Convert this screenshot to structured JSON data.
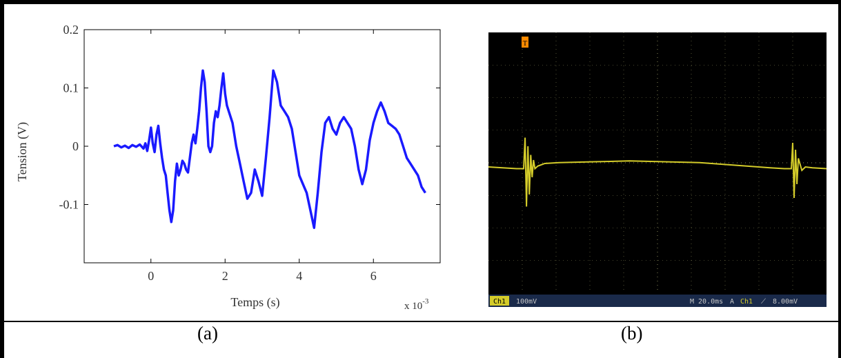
{
  "panel_a": {
    "caption": "(a)",
    "chart_data": {
      "type": "line",
      "title": "",
      "xlabel": "Temps (s)",
      "ylabel": "Tension (V)",
      "x_multiplier": "x 10",
      "x_multiplier_exp": "-3",
      "xlim": [
        -1.8,
        7.8
      ],
      "ylim": [
        -0.2,
        0.2
      ],
      "xticks": [
        0,
        2,
        4,
        6
      ],
      "xtick_labels": [
        "0",
        "2",
        "4",
        "6"
      ],
      "yticks": [
        -0.1,
        0,
        0.1,
        0.2
      ],
      "ytick_labels": [
        "-0.1",
        "0",
        "0.1",
        "0.2"
      ],
      "grid": false,
      "series": [
        {
          "color": "#1a1aff",
          "x": [
            -1.0,
            -0.9,
            -0.8,
            -0.7,
            -0.6,
            -0.5,
            -0.4,
            -0.3,
            -0.2,
            -0.15,
            -0.1,
            -0.05,
            0.0,
            0.05,
            0.1,
            0.15,
            0.2,
            0.25,
            0.3,
            0.35,
            0.4,
            0.45,
            0.5,
            0.55,
            0.6,
            0.65,
            0.7,
            0.75,
            0.8,
            0.85,
            0.9,
            0.95,
            1.0,
            1.05,
            1.1,
            1.15,
            1.2,
            1.25,
            1.3,
            1.35,
            1.4,
            1.45,
            1.5,
            1.55,
            1.6,
            1.65,
            1.7,
            1.75,
            1.8,
            1.85,
            1.9,
            1.95,
            2.0,
            2.05,
            2.1,
            2.2,
            2.3,
            2.4,
            2.5,
            2.6,
            2.7,
            2.8,
            2.9,
            3.0,
            3.1,
            3.2,
            3.3,
            3.4,
            3.5,
            3.6,
            3.7,
            3.8,
            3.9,
            4.0,
            4.1,
            4.2,
            4.3,
            4.4,
            4.5,
            4.6,
            4.7,
            4.8,
            4.9,
            5.0,
            5.1,
            5.2,
            5.3,
            5.4,
            5.5,
            5.6,
            5.7,
            5.8,
            5.9,
            6.0,
            6.1,
            6.2,
            6.3,
            6.4,
            6.5,
            6.6,
            6.7,
            6.8,
            6.9,
            7.0,
            7.1,
            7.2,
            7.3,
            7.4
          ],
          "y": [
            0.0,
            0.002,
            -0.002,
            0.001,
            -0.003,
            0.002,
            -0.001,
            0.003,
            -0.004,
            0.005,
            -0.008,
            0.01,
            0.032,
            0.005,
            -0.01,
            0.02,
            0.035,
            0.005,
            -0.02,
            -0.04,
            -0.05,
            -0.08,
            -0.11,
            -0.13,
            -0.11,
            -0.06,
            -0.03,
            -0.05,
            -0.04,
            -0.025,
            -0.03,
            -0.04,
            -0.045,
            -0.02,
            0.005,
            0.02,
            0.005,
            0.03,
            0.06,
            0.1,
            0.13,
            0.11,
            0.06,
            0.0,
            -0.01,
            0.0,
            0.04,
            0.06,
            0.05,
            0.07,
            0.1,
            0.125,
            0.09,
            0.07,
            0.06,
            0.04,
            0.0,
            -0.03,
            -0.06,
            -0.09,
            -0.08,
            -0.04,
            -0.06,
            -0.085,
            -0.02,
            0.05,
            0.13,
            0.11,
            0.07,
            0.06,
            0.05,
            0.03,
            -0.01,
            -0.05,
            -0.065,
            -0.08,
            -0.11,
            -0.14,
            -0.08,
            -0.01,
            0.04,
            0.05,
            0.03,
            0.02,
            0.04,
            0.05,
            0.04,
            0.03,
            0.0,
            -0.04,
            -0.065,
            -0.04,
            0.01,
            0.04,
            0.06,
            0.075,
            0.06,
            0.04,
            0.035,
            0.03,
            0.02,
            0.0,
            -0.02,
            -0.03,
            -0.04,
            -0.05,
            -0.07,
            -0.08
          ]
        }
      ]
    }
  },
  "panel_b": {
    "caption": "(b)",
    "chart_data": {
      "type": "line",
      "title": "",
      "trigger_marker": "T",
      "status": {
        "channel": "Ch1",
        "scale": "100mV",
        "timebase": "M 20.0ms",
        "trigger_label": "A",
        "trigger_channel": "Ch1",
        "trigger_level": "8.00mV"
      },
      "colors": {
        "trace": "#d4cc2a",
        "grid": "#8a8a5a",
        "marker": "#ff8a00",
        "background": "#000000"
      },
      "series": [
        {
          "name": "Ch1",
          "x": [
            0,
            20,
            40,
            50,
            52,
            54,
            56,
            58,
            60,
            62,
            64,
            66,
            70,
            80,
            100,
            150,
            200,
            250,
            300,
            350,
            400,
            420,
            425,
            430,
            432,
            434,
            436,
            438,
            440,
            445,
            450,
            460,
            480
          ],
          "y": [
            -0.02,
            -0.025,
            -0.03,
            -0.03,
            0.15,
            -0.25,
            0.1,
            -0.18,
            0.05,
            -0.08,
            0.02,
            -0.03,
            -0.015,
            0.0,
            0.005,
            0.01,
            0.015,
            0.01,
            0.005,
            -0.01,
            -0.025,
            -0.03,
            -0.03,
            -0.03,
            0.12,
            -0.2,
            0.08,
            -0.12,
            0.03,
            -0.04,
            -0.02,
            -0.025,
            -0.03
          ]
        }
      ]
    }
  }
}
